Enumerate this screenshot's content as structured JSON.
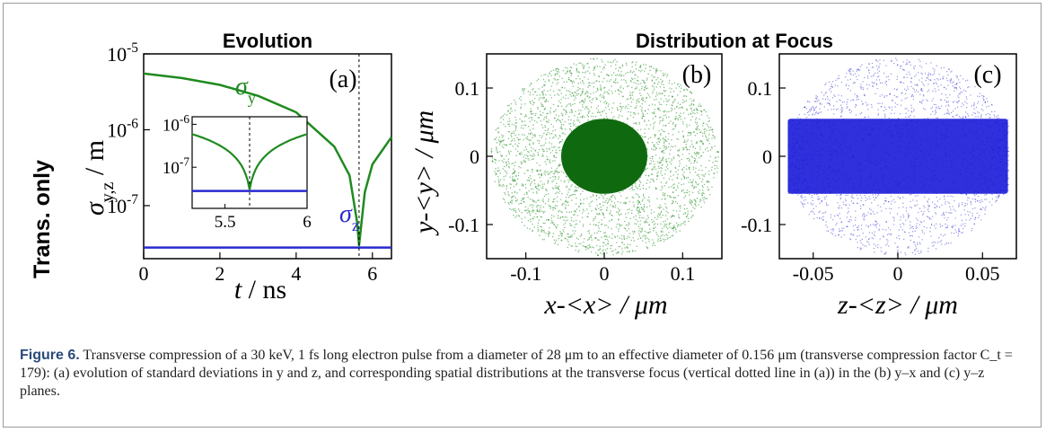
{
  "row_label": "Trans. only",
  "panel_a": {
    "title": "Evolution",
    "tag": "(a)",
    "ylabel_main": "σ",
    "ylabel_sub": "y,z",
    "ylabel_unit": " / m",
    "xlabel_var": "t",
    "xlabel_unit": " / ns",
    "yticks": [
      {
        "base": "10",
        "exp": "-5"
      },
      {
        "base": "10",
        "exp": "-6"
      },
      {
        "base": "10",
        "exp": "-7"
      }
    ],
    "xticks": [
      "0",
      "2",
      "4",
      "6"
    ],
    "label_sy_main": "σ",
    "label_sy_sub": "y",
    "label_sz_main": "σ",
    "label_sz_sub": "z",
    "inset_yticks": [
      {
        "base": "10",
        "exp": "-6"
      },
      {
        "base": "10",
        "exp": "-7"
      }
    ],
    "inset_xticks": [
      "5.5",
      "6"
    ]
  },
  "panel_b": {
    "title": "Distribution at Focus",
    "tag": "(b)",
    "ylabel": "y-<y> / μm",
    "xlabel": "x-<x> / μm",
    "yticks": [
      "0.1",
      "0",
      "-0.1"
    ],
    "xticks": [
      "-0.1",
      "0",
      "0.1"
    ]
  },
  "panel_c": {
    "tag": "(c)",
    "xlabel": "z-<z> / μm",
    "yticks": [
      "0.1",
      "0",
      "-0.1"
    ],
    "xticks": [
      "-0.05",
      "0",
      "0.05"
    ]
  },
  "caption": {
    "label": "Figure 6.",
    "text": " Transverse compression of a 30 keV, 1 fs long electron pulse from a diameter of 28 μm to an effective diameter of 0.156 μm (transverse compression factor C_t = 179): (a) evolution of standard deviations in y and z, and corresponding spatial distributions at the transverse focus (vertical dotted line in (a)) in the (b) y–x and (c) y–z planes."
  },
  "colors": {
    "green": "#1f8a1f",
    "blue": "#2a2ad0",
    "dark_green": "#0f6a0f"
  },
  "chart_data": [
    {
      "type": "line",
      "panel": "(a)",
      "yscale": "log",
      "xlim": [
        0,
        6.5
      ],
      "ylim": [
        2e-08,
        1e-05
      ],
      "series": [
        {
          "name": "σy",
          "x": [
            0,
            1,
            2,
            3,
            4,
            5,
            5.4,
            5.6,
            5.65,
            5.8,
            6.0,
            6.5
          ],
          "y": [
            5.5e-06,
            4.8e-06,
            3.9e-06,
            2.8e-06,
            1.7e-06,
            6e-07,
            2.5e-07,
            6e-08,
            3e-08,
            1.5e-07,
            3.5e-07,
            8e-07
          ]
        },
        {
          "name": "σz",
          "x": [
            0,
            6.5
          ],
          "y": [
            2.8e-08,
            2.8e-08
          ]
        }
      ],
      "focus_t": 5.65,
      "inset": {
        "xlim": [
          5.3,
          6.0
        ],
        "ylim": [
          1.1e-08,
          1.5e-06
        ]
      }
    },
    {
      "type": "scatter",
      "panel": "(b)",
      "xlim": [
        -0.15,
        0.15
      ],
      "ylim": [
        -0.15,
        0.15
      ],
      "halo_radius": 0.145,
      "core_radius": 0.055
    },
    {
      "type": "scatter",
      "panel": "(c)",
      "xlim": [
        -0.07,
        0.07
      ],
      "ylim": [
        -0.15,
        0.15
      ],
      "halo_halfwidth_z": 0.065,
      "halo_halfheight_y": 0.145,
      "core_halfwidth_z": 0.065,
      "core_halfheight_y": 0.055
    }
  ]
}
